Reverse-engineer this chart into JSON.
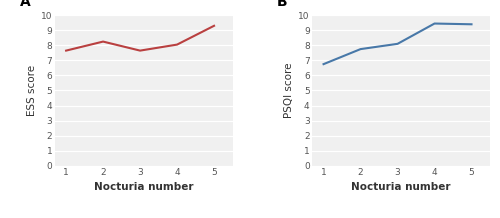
{
  "panel_A": {
    "label": "A",
    "x": [
      1,
      2,
      3,
      4,
      5
    ],
    "y": [
      7.65,
      8.25,
      7.65,
      8.05,
      9.3
    ],
    "color": "#b94040",
    "linewidth": 1.5,
    "xlabel": "Nocturia number",
    "ylabel": "ESS score",
    "ylim": [
      0,
      10
    ],
    "yticks": [
      0,
      1,
      2,
      3,
      4,
      5,
      6,
      7,
      8,
      9,
      10
    ],
    "xticks": [
      1,
      2,
      3,
      4,
      5
    ]
  },
  "panel_B": {
    "label": "B",
    "x": [
      1,
      2,
      3,
      4,
      5
    ],
    "y": [
      6.75,
      7.75,
      8.1,
      9.45,
      9.4
    ],
    "color": "#4878a8",
    "linewidth": 1.5,
    "xlabel": "Nocturia number",
    "ylabel": "PSQI score",
    "ylim": [
      0,
      10
    ],
    "yticks": [
      0,
      1,
      2,
      3,
      4,
      5,
      6,
      7,
      8,
      9,
      10
    ],
    "xticks": [
      1,
      2,
      3,
      4,
      5
    ]
  },
  "background_color": "#ffffff",
  "plot_bg_color": "#f0f0f0",
  "grid_color": "#ffffff",
  "xlabel_fontsize": 7.5,
  "ylabel_fontsize": 7.5,
  "tick_fontsize": 6.5,
  "label_fontsize": 10,
  "label_fontweight": "bold",
  "tick_color": "#555555"
}
